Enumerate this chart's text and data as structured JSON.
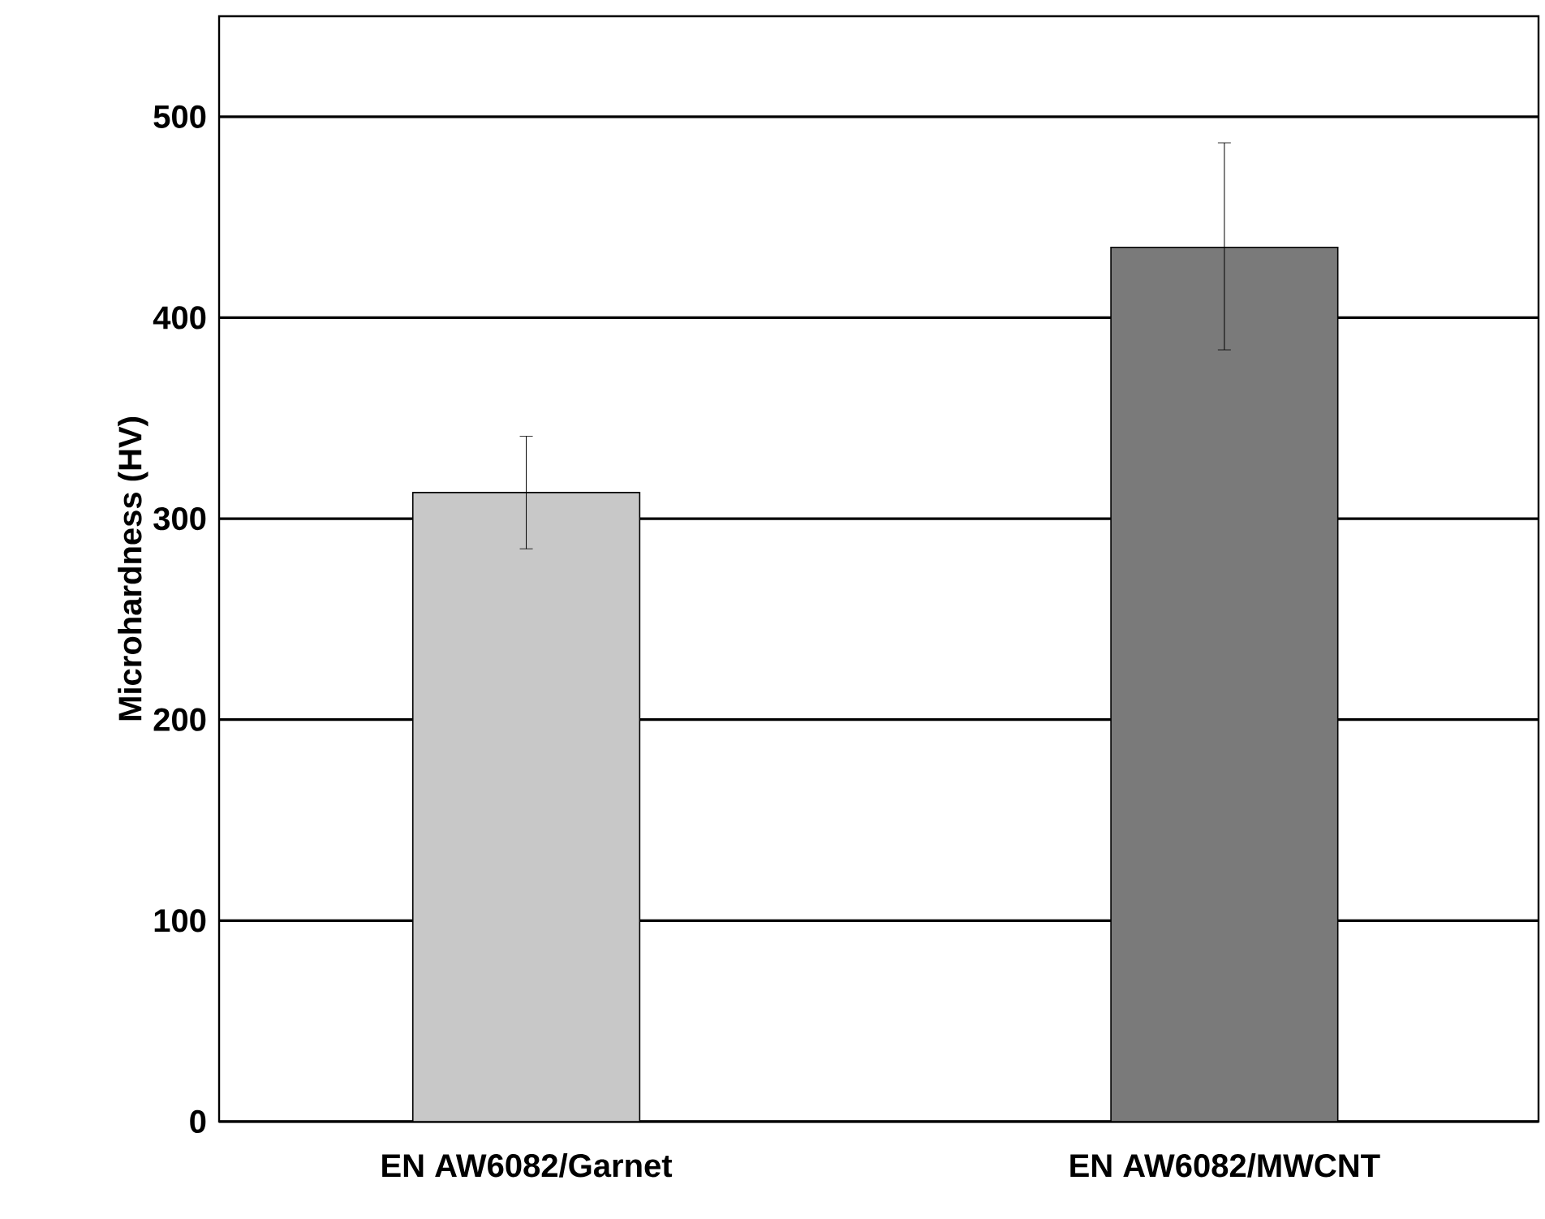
{
  "chart_data": {
    "type": "bar",
    "ylabel": "Microhardness (HV)",
    "categories": [
      "EN AW6082/Garnet",
      "EN AW6082/MWCNT"
    ],
    "values": [
      313,
      435
    ],
    "colors": [
      "#c8c8c8",
      "#7a7a7a"
    ],
    "errors": [
      [
        285,
        341
      ],
      [
        384,
        487
      ]
    ],
    "ylim": [
      0,
      550
    ],
    "yticks": [
      0,
      100,
      200,
      300,
      400,
      500
    ],
    "grid": "y"
  }
}
